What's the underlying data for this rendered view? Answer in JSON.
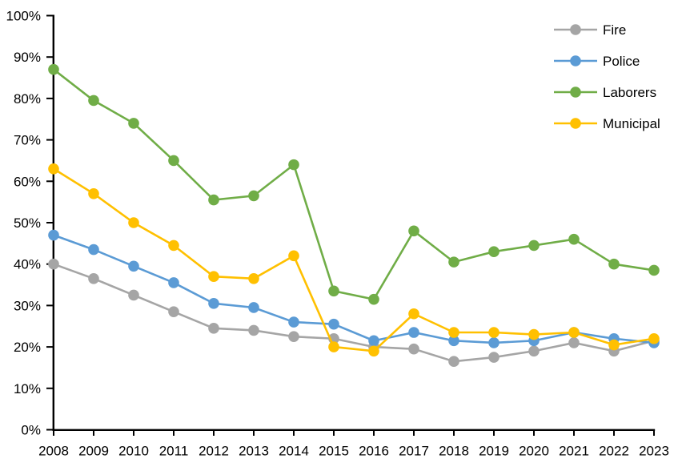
{
  "chart_data": {
    "type": "line",
    "title": "",
    "xlabel": "",
    "ylabel": "",
    "categories": [
      "2008",
      "2009",
      "2010",
      "2011",
      "2012",
      "2013",
      "2014",
      "2015",
      "2016",
      "2017",
      "2018",
      "2019",
      "2020",
      "2021",
      "2022",
      "2023"
    ],
    "series": [
      {
        "name": "Fire",
        "color": "#A5A5A5",
        "values": [
          40,
          36.5,
          32.5,
          28.5,
          24.5,
          24,
          22.5,
          22,
          20,
          19.5,
          16.5,
          17.5,
          19,
          21,
          19,
          21.5
        ]
      },
      {
        "name": "Police",
        "color": "#5B9BD5",
        "values": [
          47,
          43.5,
          39.5,
          35.5,
          30.5,
          29.5,
          26,
          25.5,
          21.5,
          23.5,
          21.5,
          21,
          21.5,
          23.5,
          22,
          21
        ]
      },
      {
        "name": "Laborers",
        "color": "#70AD47",
        "values": [
          87,
          79.5,
          74,
          65,
          55.5,
          56.5,
          64,
          33.5,
          31.5,
          48,
          40.5,
          43,
          44.5,
          46,
          40,
          38.5
        ]
      },
      {
        "name": "Municipal",
        "color": "#FFC000",
        "values": [
          63,
          57,
          50,
          44.5,
          37,
          36.5,
          42,
          20,
          19,
          28,
          23.5,
          23.5,
          23,
          23.5,
          20.5,
          22
        ]
      }
    ],
    "ylim": [
      0,
      100
    ],
    "ytick_step": 10,
    "ytick_labels": [
      "0%",
      "10%",
      "20%",
      "30%",
      "40%",
      "50%",
      "60%",
      "70%",
      "80%",
      "90%",
      "100%"
    ],
    "grid": false,
    "legend_position": "top-right",
    "legend_entries": [
      "Fire",
      "Police",
      "Laborers",
      "Municipal"
    ],
    "axis_color": "#000000",
    "text_color": "#000000",
    "background_color": "#FFFFFF"
  }
}
